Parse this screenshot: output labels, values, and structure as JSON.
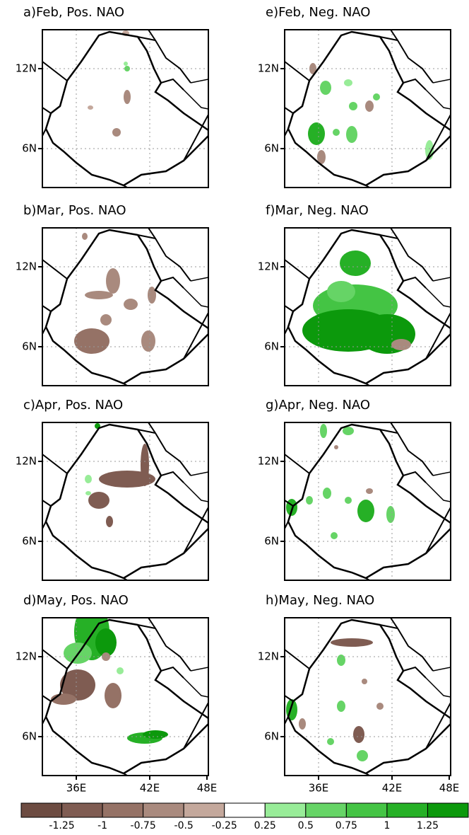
{
  "panels": [
    {
      "title": "a)Feb, Pos. NAO"
    },
    {
      "title": "b)Mar, Pos. NAO"
    },
    {
      "title": "c)Apr, Pos. NAO"
    },
    {
      "title": "d)May, Pos. NAO"
    },
    {
      "title": "e)Feb, Neg. NAO"
    },
    {
      "title": "f)Mar, Neg. NAO"
    },
    {
      "title": "g)Apr, Neg. NAO"
    },
    {
      "title": "h)May, Neg. NAO"
    }
  ],
  "y_ticks": [
    "12N",
    "6N"
  ],
  "x_ticks": [
    "36E",
    "42E",
    "48E"
  ],
  "colorbar": {
    "colors": [
      "#6d4c42",
      "#7f5c52",
      "#957266",
      "#a98a7e",
      "#c4a89c",
      "#ffffff",
      "#98ec98",
      "#66d466",
      "#44c444",
      "#26b026",
      "#0c990c"
    ],
    "labels": [
      "-1.25",
      "-1",
      "-0.75",
      "-0.5",
      "-0.25",
      "0.25",
      "0.5",
      "0.75",
      "1",
      "1.25"
    ]
  }
}
